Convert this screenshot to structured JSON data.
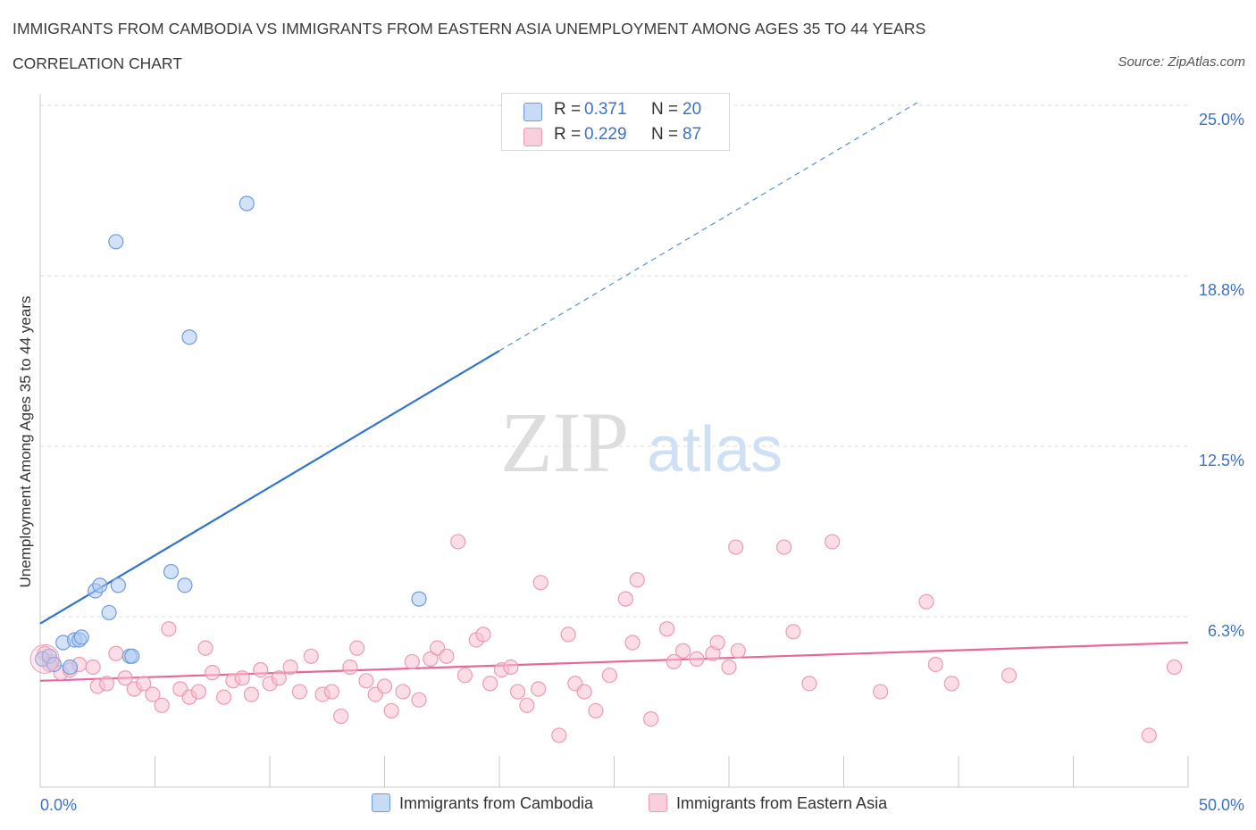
{
  "title": "IMMIGRANTS FROM CAMBODIA VS IMMIGRANTS FROM EASTERN ASIA UNEMPLOYMENT AMONG AGES 35 TO 44 YEARS",
  "subtitle": "CORRELATION CHART",
  "source": "Source: ZipAtlas.com",
  "watermark": {
    "zip": "ZIP",
    "atlas": "atlas"
  },
  "legend": {
    "rows": [
      {
        "r_label": "R =",
        "r_value": "0.371",
        "n_label": "N =",
        "n_value": "20"
      },
      {
        "r_label": "R =",
        "r_value": "0.229",
        "n_label": "N =",
        "n_value": "87"
      }
    ]
  },
  "colors": {
    "cambodia_fill": "#aecbf2",
    "cambodia_stroke": "#6d9be0",
    "cambodia_line": "#2e73cc",
    "easia_fill": "#f7c1d2",
    "easia_stroke": "#ec9ab4",
    "easia_line": "#e8679a",
    "tick_label": "#3b72c8",
    "grid": "#dcdcdc"
  },
  "chart_data": {
    "type": "scatter",
    "title": "IMMIGRANTS FROM CAMBODIA VS IMMIGRANTS FROM EASTERN ASIA UNEMPLOYMENT AMONG AGES 35 TO 44 YEARS",
    "xlabel": "",
    "ylabel": "Unemployment Among Ages 35 to 44 years",
    "xlim": [
      0,
      50
    ],
    "ylim": [
      0,
      25
    ],
    "x_tick_labels": [
      "0.0%",
      "50.0%"
    ],
    "y_ticks": [
      {
        "value": 6.25,
        "label": "6.3%"
      },
      {
        "value": 12.5,
        "label": "12.5%"
      },
      {
        "value": 18.75,
        "label": "18.8%"
      },
      {
        "value": 25,
        "label": "25.0%"
      }
    ],
    "grid": "horizontal dashed",
    "series": [
      {
        "name": "Immigrants from Cambodia",
        "r": 0.371,
        "n": 20,
        "points": [
          [
            0.1,
            4.7
          ],
          [
            0.4,
            4.8
          ],
          [
            0.6,
            4.5
          ],
          [
            1.0,
            5.3
          ],
          [
            1.3,
            4.4
          ],
          [
            1.5,
            5.4
          ],
          [
            1.7,
            5.4
          ],
          [
            1.8,
            5.5
          ],
          [
            2.4,
            7.2
          ],
          [
            2.6,
            7.4
          ],
          [
            3.0,
            6.4
          ],
          [
            3.4,
            7.4
          ],
          [
            3.9,
            4.8
          ],
          [
            4.0,
            4.8
          ],
          [
            5.7,
            7.9
          ],
          [
            6.3,
            7.4
          ],
          [
            3.3,
            20.0
          ],
          [
            6.5,
            16.5
          ],
          [
            9.0,
            21.4
          ],
          [
            16.5,
            6.9
          ]
        ],
        "trend": {
          "x0": 0,
          "y0": 6.0,
          "x1": 20,
          "y1": 16.0,
          "dashed_to_x": 38.2,
          "dashed_to_y": 25.1
        }
      },
      {
        "name": "Immigrants from Eastern Asia",
        "r": 0.229,
        "n": 87,
        "points": [
          [
            0.2,
            4.9
          ],
          [
            0.5,
            4.6
          ],
          [
            0.9,
            4.2
          ],
          [
            1.3,
            4.3
          ],
          [
            1.7,
            4.5
          ],
          [
            2.3,
            4.4
          ],
          [
            2.5,
            3.7
          ],
          [
            2.9,
            3.8
          ],
          [
            3.3,
            4.9
          ],
          [
            3.7,
            4.0
          ],
          [
            4.1,
            3.6
          ],
          [
            4.5,
            3.8
          ],
          [
            4.9,
            3.4
          ],
          [
            5.3,
            3.0
          ],
          [
            5.6,
            5.8
          ],
          [
            6.1,
            3.6
          ],
          [
            6.5,
            3.3
          ],
          [
            6.9,
            3.5
          ],
          [
            7.2,
            5.1
          ],
          [
            7.5,
            4.2
          ],
          [
            8.0,
            3.3
          ],
          [
            8.4,
            3.9
          ],
          [
            8.8,
            4.0
          ],
          [
            9.2,
            3.4
          ],
          [
            9.6,
            4.3
          ],
          [
            10.0,
            3.8
          ],
          [
            10.4,
            4.0
          ],
          [
            10.9,
            4.4
          ],
          [
            11.3,
            3.5
          ],
          [
            11.8,
            4.8
          ],
          [
            12.3,
            3.4
          ],
          [
            12.7,
            3.5
          ],
          [
            13.1,
            2.6
          ],
          [
            13.5,
            4.4
          ],
          [
            13.8,
            5.1
          ],
          [
            14.2,
            3.9
          ],
          [
            14.6,
            3.4
          ],
          [
            15.0,
            3.7
          ],
          [
            15.3,
            2.8
          ],
          [
            15.8,
            3.5
          ],
          [
            16.2,
            4.6
          ],
          [
            16.5,
            3.2
          ],
          [
            17.0,
            4.7
          ],
          [
            17.3,
            5.1
          ],
          [
            17.7,
            4.8
          ],
          [
            18.2,
            9.0
          ],
          [
            18.5,
            4.1
          ],
          [
            19.0,
            5.4
          ],
          [
            19.3,
            5.6
          ],
          [
            19.6,
            3.8
          ],
          [
            20.1,
            4.3
          ],
          [
            20.5,
            4.4
          ],
          [
            20.8,
            3.5
          ],
          [
            21.2,
            3.0
          ],
          [
            21.7,
            3.6
          ],
          [
            21.8,
            7.5
          ],
          [
            22.6,
            1.9
          ],
          [
            23.0,
            5.6
          ],
          [
            23.3,
            3.8
          ],
          [
            23.7,
            3.5
          ],
          [
            24.2,
            2.8
          ],
          [
            24.8,
            4.1
          ],
          [
            25.5,
            6.9
          ],
          [
            25.8,
            5.3
          ],
          [
            26.0,
            7.6
          ],
          [
            26.6,
            2.5
          ],
          [
            27.3,
            5.8
          ],
          [
            27.6,
            4.6
          ],
          [
            28.0,
            5.0
          ],
          [
            28.6,
            4.7
          ],
          [
            29.3,
            4.9
          ],
          [
            29.5,
            5.3
          ],
          [
            30.0,
            4.4
          ],
          [
            30.4,
            5.0
          ],
          [
            30.3,
            8.8
          ],
          [
            32.4,
            8.8
          ],
          [
            32.8,
            5.7
          ],
          [
            33.5,
            3.8
          ],
          [
            34.5,
            9.0
          ],
          [
            36.6,
            3.5
          ],
          [
            38.6,
            6.8
          ],
          [
            39.0,
            4.5
          ],
          [
            39.7,
            3.8
          ],
          [
            42.2,
            4.1
          ],
          [
            48.3,
            1.9
          ],
          [
            49.4,
            4.4
          ],
          [
            0.4,
            4.5
          ]
        ],
        "trend": {
          "x0": 0,
          "y0": 3.9,
          "x1": 50,
          "y1": 5.3
        }
      }
    ]
  },
  "bottom_legend": [
    {
      "label": "Immigrants from Cambodia"
    },
    {
      "label": "Immigrants from Eastern Asia"
    }
  ]
}
